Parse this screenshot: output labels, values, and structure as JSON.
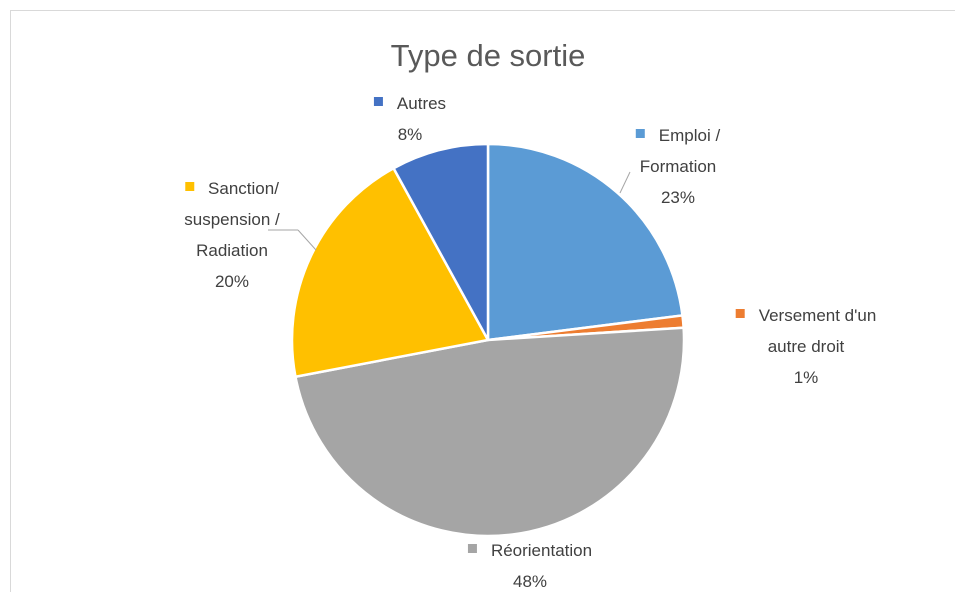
{
  "chart_data": {
    "type": "pie",
    "title": "Type de sortie",
    "categories": [
      "Emploi /\nFormation",
      "Versement d'un\nautre droit",
      "Réorientation",
      "Sanction/\nsuspension /\nRadiation",
      "Autres"
    ],
    "values": [
      23,
      1,
      48,
      20,
      8
    ],
    "value_labels": [
      "23%",
      "1%",
      "48%",
      "20%",
      "8%"
    ],
    "colors": [
      "#5b9bd5",
      "#ed7d31",
      "#a5a5a5",
      "#ffc000",
      "#4472c4"
    ]
  }
}
